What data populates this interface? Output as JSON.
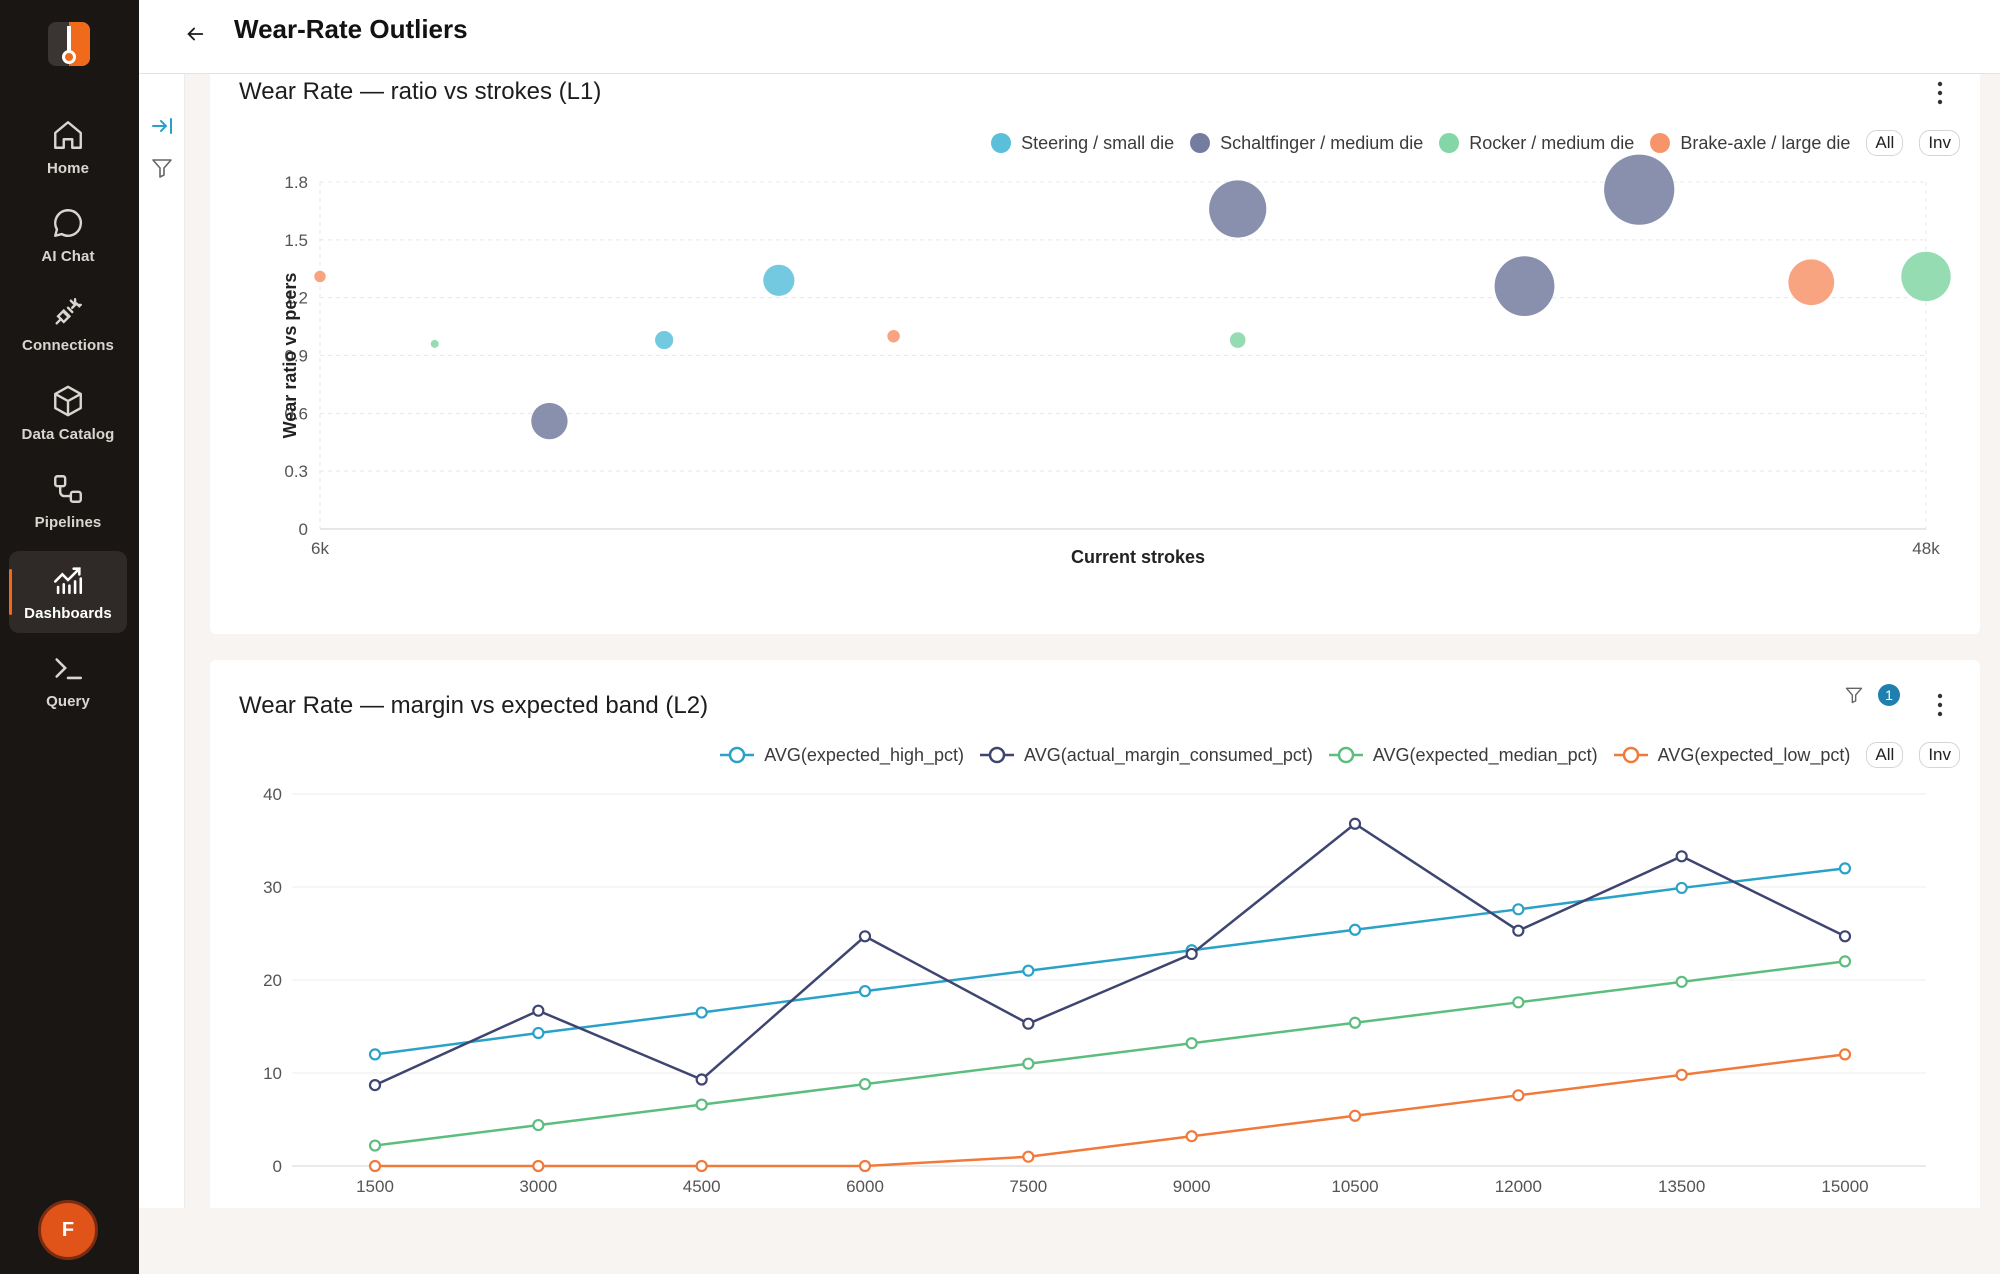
{
  "colors": {
    "accent": "#f06a1c",
    "steering": "#5bbfda",
    "schaltfinger": "#747ca0",
    "rocker": "#83d6a5",
    "brake": "#f8946a",
    "expected_high": "#2aa2c8",
    "actual_margin": "#3e4570",
    "expected_median": "#5cbd7e",
    "expected_low": "#f07a3a"
  },
  "sidebar": {
    "logo_icon": "flame-thermometer-logo",
    "items": [
      {
        "label": "Home",
        "icon": "home-icon",
        "active": false
      },
      {
        "label": "AI Chat",
        "icon": "chat-bubble-icon",
        "active": false
      },
      {
        "label": "Connections",
        "icon": "plug-icon",
        "active": false
      },
      {
        "label": "Data Catalog",
        "icon": "cube-icon",
        "active": false
      },
      {
        "label": "Pipelines",
        "icon": "pipeline-icon",
        "active": false
      },
      {
        "label": "Dashboards",
        "icon": "dashboard-chart-icon",
        "active": true
      },
      {
        "label": "Query",
        "icon": "terminal-icon",
        "active": false
      }
    ],
    "avatar_initial": "F"
  },
  "header": {
    "title": "Wear-Rate Outliers"
  },
  "legend_controls": {
    "all": "All",
    "inv": "Inv"
  },
  "filter_badge_count": "1",
  "chart_data": [
    {
      "type": "scatter",
      "title": "Wear Rate — ratio vs strokes (L1)",
      "xlabel": "Current strokes",
      "ylabel": "Wear ratio vs peers",
      "xlim": [
        6000,
        48000
      ],
      "ylim": [
        0,
        1.8
      ],
      "x_tick_labels": [
        "6k",
        "48k"
      ],
      "y_ticks": [
        "0",
        "0.3",
        "0.6",
        "0.9",
        "1.2",
        "1.5",
        "1.8"
      ],
      "grid": true,
      "legend": "top-right",
      "bubble_size_scale": "relative",
      "series": [
        {
          "name": "Steering / small die",
          "color": "#5bbfda",
          "points": [
            [
              15000,
              0.98,
              0.35
            ],
            [
              18000,
              1.29,
              0.6
            ]
          ]
        },
        {
          "name": "Schaltfinger / medium die",
          "color": "#747ca0",
          "points": [
            [
              12000,
              0.56,
              0.7
            ],
            [
              30000,
              1.66,
              1.1
            ],
            [
              37500,
              1.26,
              1.15
            ],
            [
              40500,
              1.76,
              1.35
            ]
          ]
        },
        {
          "name": "Rocker / medium die",
          "color": "#83d6a5",
          "points": [
            [
              9000,
              0.96,
              0.1
            ],
            [
              30000,
              0.98,
              0.3
            ],
            [
              48000,
              1.31,
              0.95
            ]
          ]
        },
        {
          "name": "Brake-axle / large die",
          "color": "#f8946a",
          "points": [
            [
              6000,
              1.31,
              0.22
            ],
            [
              21000,
              1.0,
              0.24
            ],
            [
              45000,
              1.28,
              0.88
            ]
          ]
        }
      ]
    },
    {
      "type": "line",
      "title": "Wear Rate — margin vs expected band (L2)",
      "xlabel": "",
      "ylabel": "",
      "x": [
        1500,
        3000,
        4500,
        6000,
        7500,
        9000,
        10500,
        12000,
        13500,
        15000
      ],
      "ylim": [
        0,
        40
      ],
      "y_ticks": [
        "0",
        "10",
        "20",
        "30",
        "40"
      ],
      "grid": true,
      "legend": "top-right",
      "series": [
        {
          "name": "AVG(expected_high_pct)",
          "color": "#2aa2c8",
          "values": [
            12,
            14.3,
            16.5,
            18.8,
            21,
            23.2,
            25.4,
            27.6,
            29.9,
            32
          ]
        },
        {
          "name": "AVG(actual_margin_consumed_pct)",
          "color": "#3e4570",
          "values": [
            8.7,
            16.7,
            9.3,
            24.7,
            15.3,
            22.8,
            36.8,
            25.3,
            33.3,
            24.7
          ]
        },
        {
          "name": "AVG(expected_median_pct)",
          "color": "#5cbd7e",
          "values": [
            2.2,
            4.4,
            6.6,
            8.8,
            11,
            13.2,
            15.4,
            17.6,
            19.8,
            22
          ]
        },
        {
          "name": "AVG(expected_low_pct)",
          "color": "#f07a3a",
          "values": [
            0,
            0,
            0,
            0,
            1,
            3.2,
            5.4,
            7.6,
            9.8,
            12
          ]
        }
      ]
    }
  ]
}
